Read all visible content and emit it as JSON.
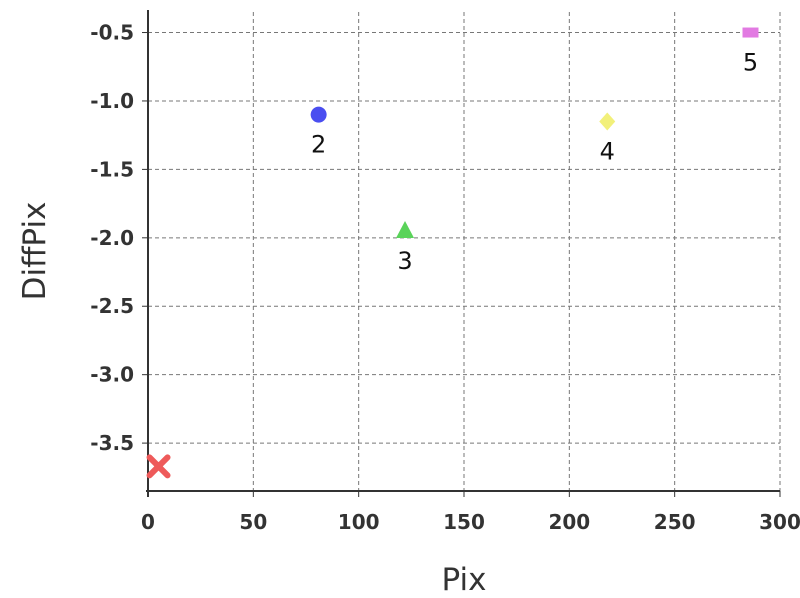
{
  "chart_data": {
    "type": "scatter",
    "xlabel": "Pix",
    "ylabel": "DiffPix",
    "xlim": [
      0,
      300
    ],
    "ylim": [
      -3.85,
      -0.35
    ],
    "xticks": [
      0,
      50,
      100,
      150,
      200,
      250,
      300
    ],
    "xtick_labels": [
      "0",
      "50",
      "100",
      "150",
      "200",
      "250",
      "300"
    ],
    "yticks": [
      -3.5,
      -3.0,
      -2.5,
      -2.0,
      -1.5,
      -1.0,
      -0.5
    ],
    "ytick_labels": [
      "-3.5",
      "-3.0",
      "-2.5",
      "-2.0",
      "-1.5",
      "-1.0",
      "-0.5"
    ],
    "grid": true,
    "points": [
      {
        "label": "",
        "x": 5,
        "y": -3.67,
        "marker": "x",
        "color": "#ee5a5a"
      },
      {
        "label": "2",
        "x": 81,
        "y": -1.1,
        "marker": "circle",
        "color": "#4a4ef0"
      },
      {
        "label": "3",
        "x": 122,
        "y": -1.95,
        "marker": "triangle",
        "color": "#5ad35a"
      },
      {
        "label": "4",
        "x": 218,
        "y": -1.15,
        "marker": "diamond",
        "color": "#f2f07a"
      },
      {
        "label": "5",
        "x": 286,
        "y": -0.5,
        "marker": "square",
        "color": "#e27ae2"
      }
    ]
  }
}
